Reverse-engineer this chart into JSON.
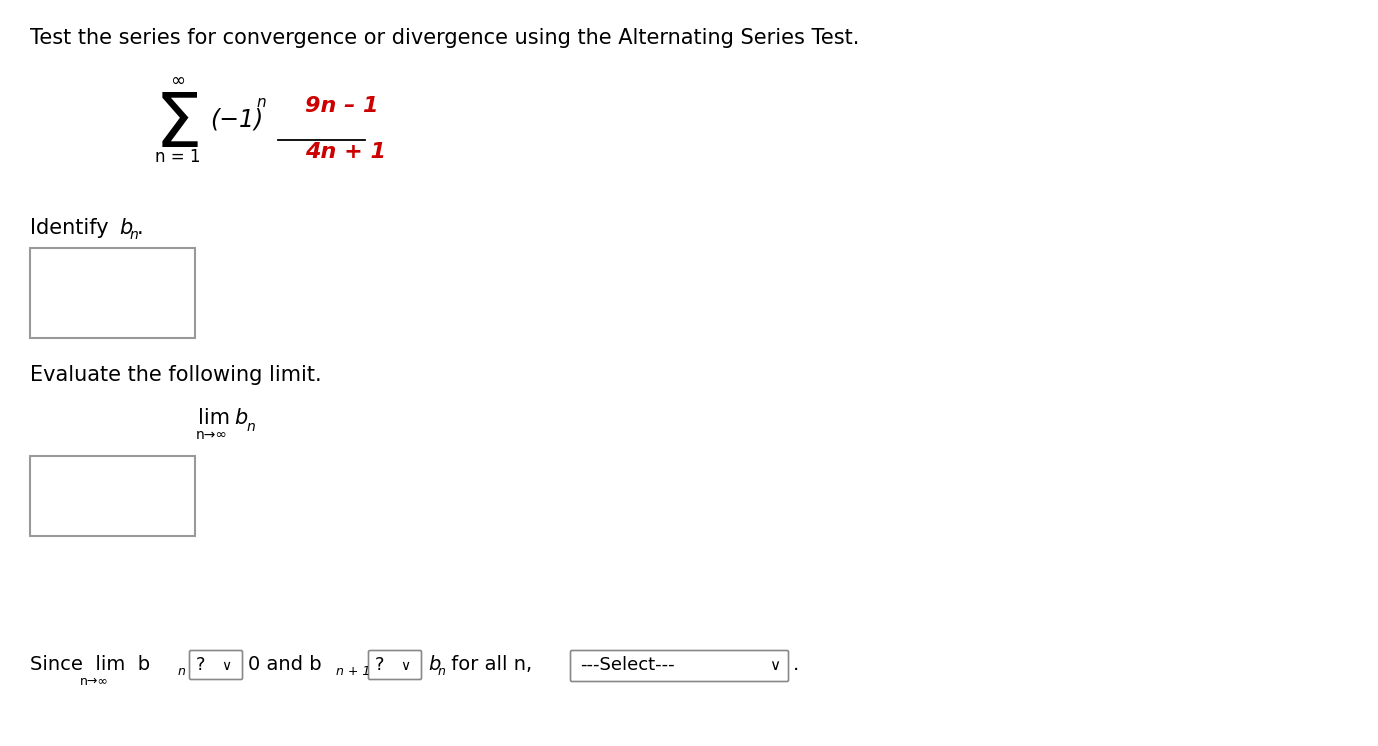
{
  "bg": "#ffffff",
  "black": "#000000",
  "red": "#cc0000",
  "gray_box": "#999999",
  "title": "Test the series for convergence or divergence using the Alternating Series Test.",
  "fraction_num": "9n – 1",
  "fraction_den": "4n + 1",
  "select_text": "---Select---"
}
